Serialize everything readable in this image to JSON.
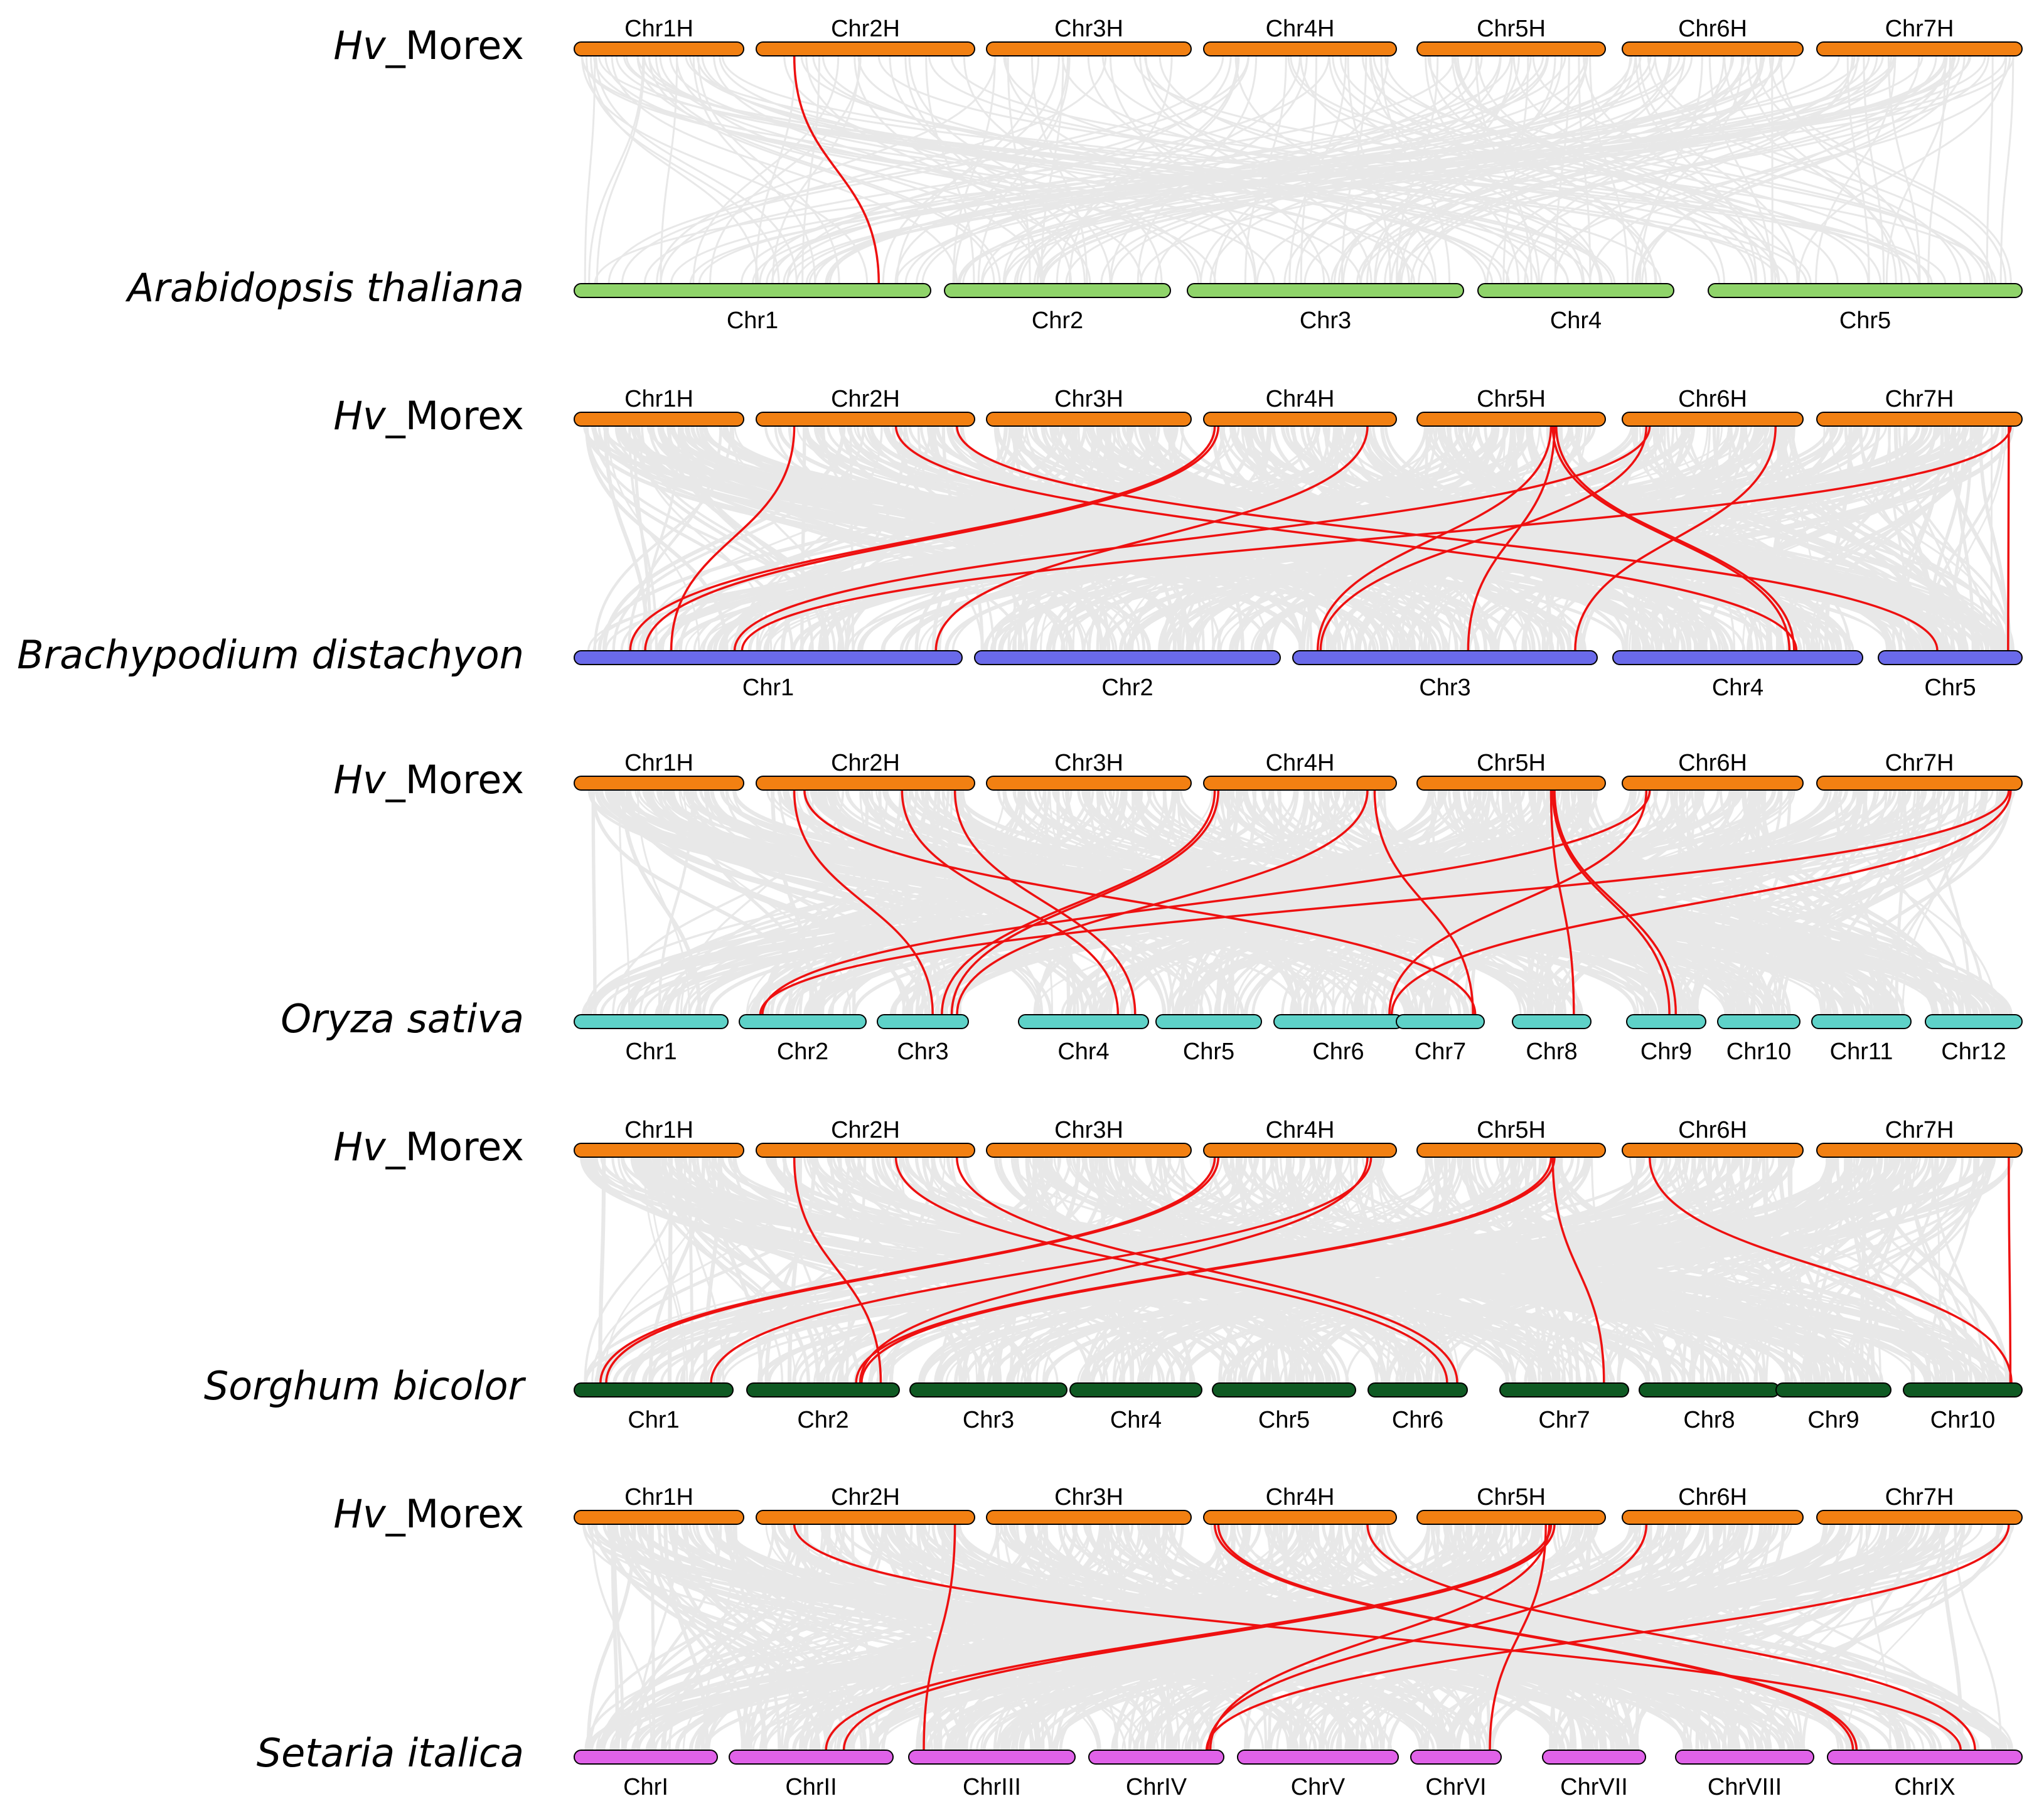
{
  "colors": {
    "reference": "#F28012",
    "background_link": "#E8E8E8",
    "highlight_link": "#EE1010"
  },
  "reference": {
    "prefix": "Hv",
    "suffix": "_Morex",
    "chromosomes": [
      "Chr1H",
      "Chr2H",
      "Chr3H",
      "Chr4H",
      "Chr5H",
      "Chr6H",
      "Chr7H"
    ]
  },
  "panels": [
    {
      "species": "Arabidopsis thaliana",
      "color": "#8FD46A",
      "chromosomes": [
        "Chr1",
        "Chr2",
        "Chr3",
        "Chr4",
        "Chr5"
      ],
      "links": [
        [
          1,
          0.15,
          0,
          0.87
        ]
      ]
    },
    {
      "species": "Brachypodium distachyon",
      "color": "#6A6AEA",
      "chromosomes": [
        "Chr1",
        "Chr2",
        "Chr3",
        "Chr4",
        "Chr5"
      ],
      "links": [
        [
          1,
          0.15,
          0,
          0.24
        ],
        [
          1,
          0.65,
          3,
          0.75
        ],
        [
          1,
          0.95,
          4,
          0.4
        ],
        [
          3,
          0.02,
          0,
          0.13
        ],
        [
          3,
          0.04,
          0,
          0.17
        ],
        [
          3,
          0.88,
          0,
          0.95
        ],
        [
          4,
          0.73,
          2,
          0.06
        ],
        [
          4,
          0.75,
          2,
          0.58
        ],
        [
          4,
          0.74,
          3,
          0.72
        ],
        [
          4,
          0.76,
          3,
          0.74
        ],
        [
          5,
          0.12,
          0,
          0.41
        ],
        [
          5,
          0.1,
          2,
          0.07
        ],
        [
          5,
          0.88,
          2,
          0.95
        ],
        [
          6,
          0.98,
          0,
          0.43
        ],
        [
          6,
          0.97,
          4,
          0.95
        ]
      ]
    },
    {
      "species": "Oryza sativa",
      "color": "#5ED2C8",
      "chromosomes": [
        "Chr1",
        "Chr2",
        "Chr3",
        "Chr4",
        "Chr5",
        "Chr6",
        "Chr7",
        "Chr8",
        "Chr9",
        "Chr10",
        "Chr11",
        "Chr12"
      ],
      "links": [
        [
          1,
          0.15,
          2,
          0.63
        ],
        [
          1,
          0.2,
          6,
          0.98
        ],
        [
          1,
          0.68,
          3,
          0.8
        ],
        [
          1,
          0.94,
          3,
          0.95
        ],
        [
          3,
          0.02,
          2,
          0.75
        ],
        [
          3,
          0.04,
          2,
          0.88
        ],
        [
          3,
          0.88,
          2,
          0.95
        ],
        [
          3,
          0.92,
          6,
          0.95
        ],
        [
          4,
          0.73,
          7,
          0.85
        ],
        [
          4,
          0.74,
          8,
          0.55
        ],
        [
          4,
          0.75,
          8,
          0.65
        ],
        [
          5,
          0.1,
          5,
          0.95
        ],
        [
          5,
          0.12,
          1,
          0.14
        ],
        [
          6,
          0.97,
          1,
          0.12
        ],
        [
          6,
          0.98,
          5,
          0.97
        ]
      ]
    },
    {
      "species": "Sorghum bicolor",
      "color": "#0F5A23",
      "chromosomes": [
        "Chr1",
        "Chr2",
        "Chr3",
        "Chr4",
        "Chr5",
        "Chr6",
        "Chr7",
        "Chr8",
        "Chr9",
        "Chr10"
      ],
      "links": [
        [
          1,
          0.15,
          1,
          0.92
        ],
        [
          1,
          0.65,
          5,
          0.85
        ],
        [
          1,
          0.95,
          5,
          0.97
        ],
        [
          3,
          0.02,
          0,
          0.13
        ],
        [
          3,
          0.04,
          0,
          0.17
        ],
        [
          3,
          0.88,
          1,
          0.77
        ],
        [
          3,
          0.9,
          0,
          0.9
        ],
        [
          4,
          0.73,
          1,
          0.74
        ],
        [
          4,
          0.75,
          1,
          0.78
        ],
        [
          4,
          0.74,
          6,
          0.85
        ],
        [
          5,
          0.12,
          9,
          0.97
        ],
        [
          6,
          0.97,
          9,
          0.96
        ]
      ]
    },
    {
      "species": "Setaria italica",
      "color": "#E062E8",
      "chromosomes": [
        "ChrI",
        "ChrII",
        "ChrIII",
        "ChrIV",
        "ChrV",
        "ChrVI",
        "ChrVII",
        "ChrVIII",
        "ChrIX"
      ],
      "links": [
        [
          1,
          0.15,
          8,
          0.7
        ],
        [
          1,
          0.94,
          2,
          0.05
        ],
        [
          3,
          0.02,
          8,
          0.1
        ],
        [
          3,
          0.04,
          8,
          0.12
        ],
        [
          3,
          0.88,
          8,
          0.78
        ],
        [
          4,
          0.73,
          1,
          0.6
        ],
        [
          4,
          0.75,
          1,
          0.72
        ],
        [
          4,
          0.72,
          3,
          0.95
        ],
        [
          4,
          0.7,
          5,
          0.95
        ],
        [
          5,
          0.1,
          3,
          0.93
        ],
        [
          6,
          0.97,
          3,
          0.92
        ]
      ]
    }
  ]
}
